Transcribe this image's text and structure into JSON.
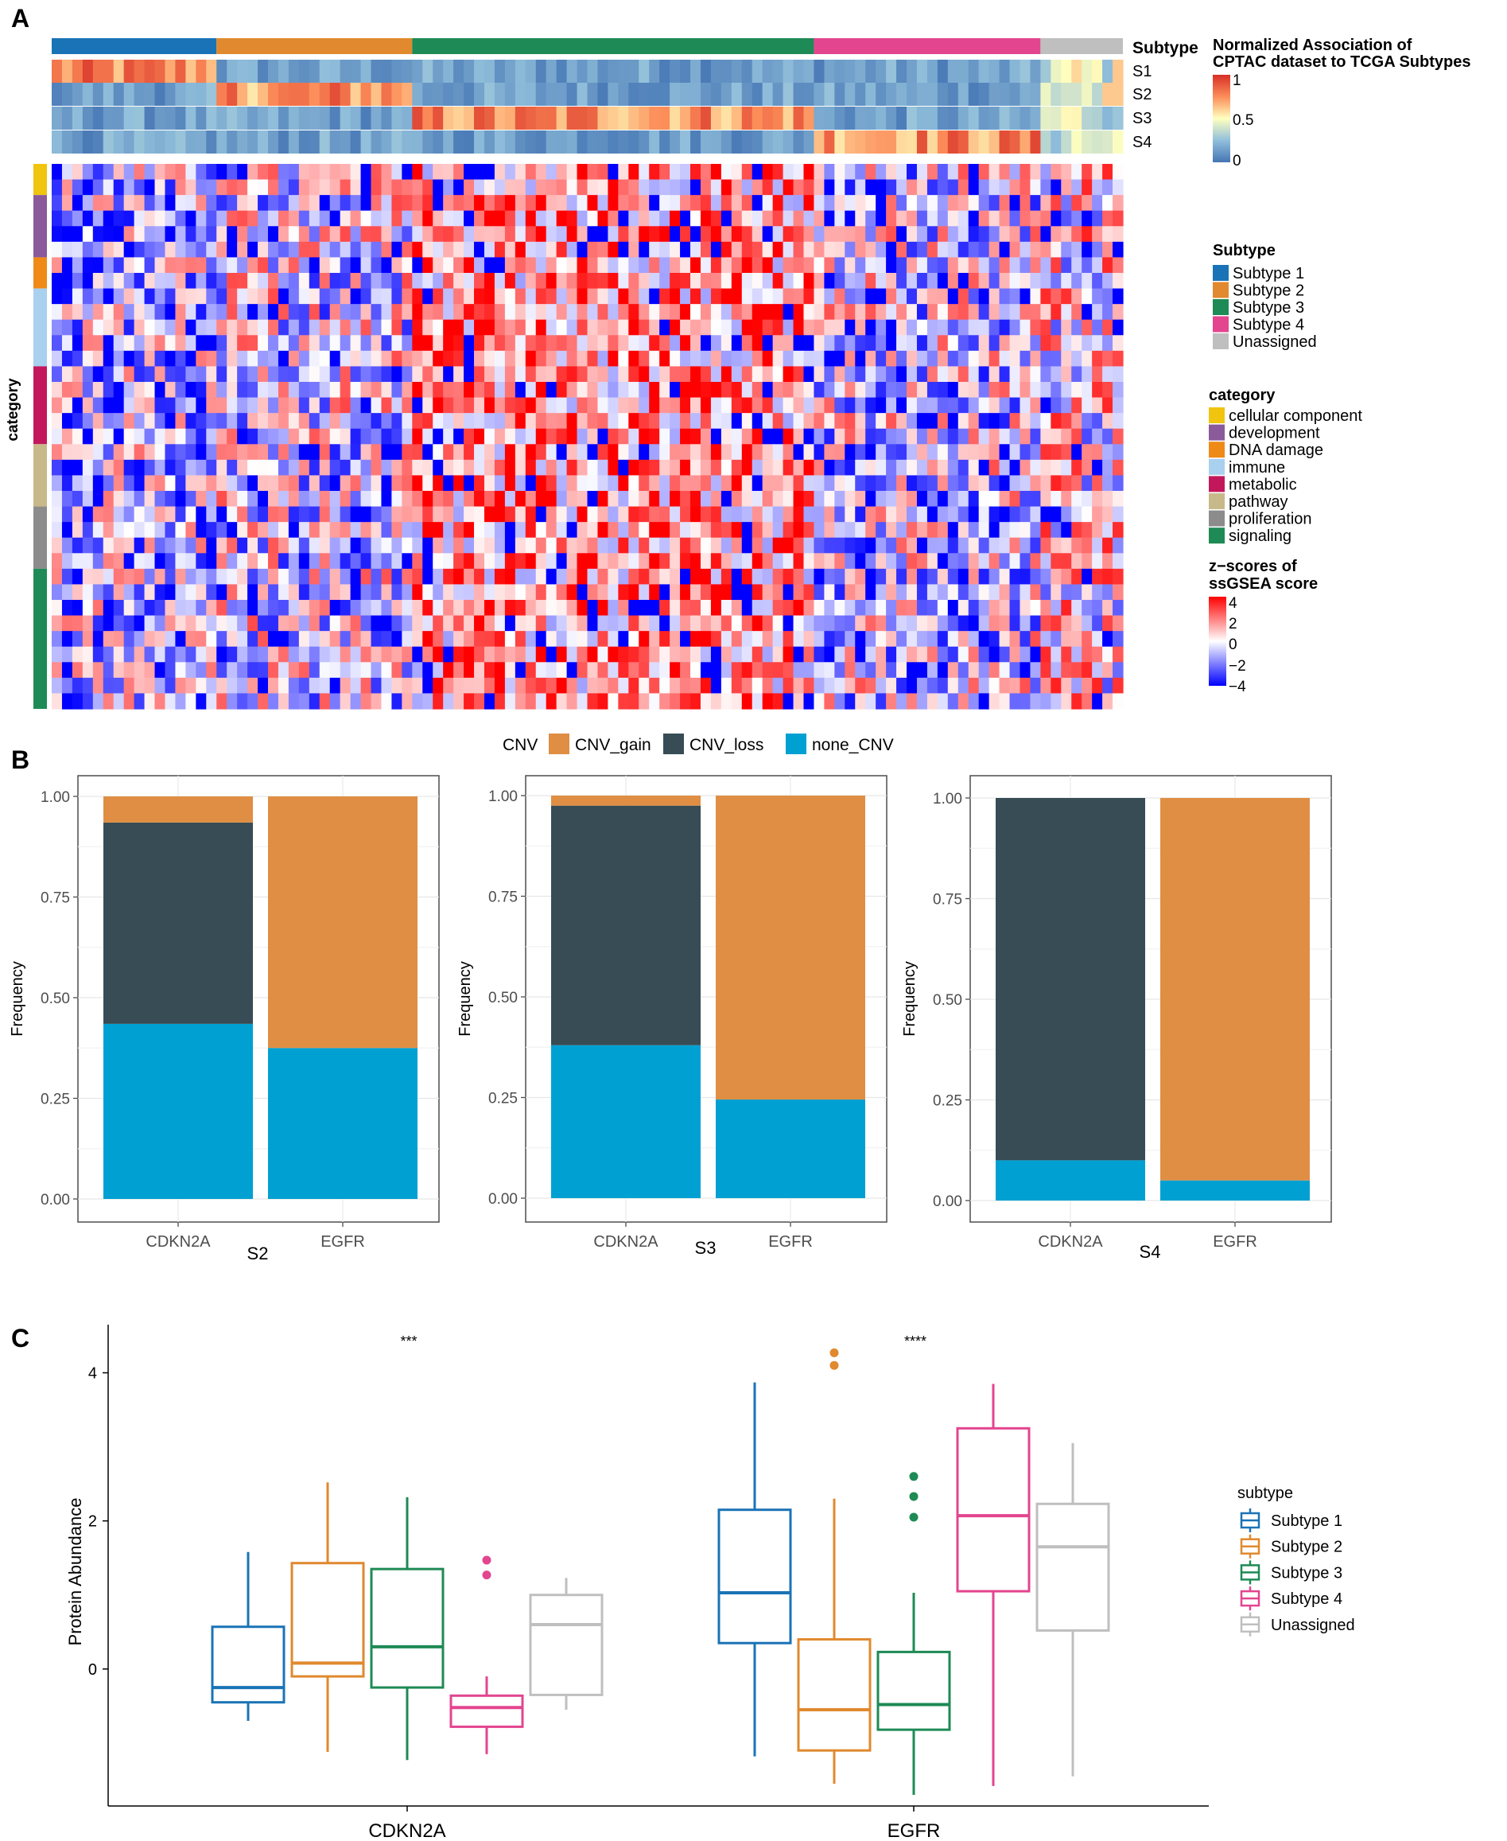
{
  "panels": {
    "a": "A",
    "b": "B",
    "c": "C"
  },
  "colors": {
    "subtype1": "#1a73b6",
    "subtype2": "#e0892e",
    "subtype3": "#1e8a55",
    "subtype4": "#e3458f",
    "unassigned": "#bfbfbf",
    "cnv_gain": "#df8e44",
    "cnv_loss": "#374c54",
    "none_cnv": "#00a0d2"
  },
  "heatmap": {
    "subtype_row_label": "Subtype",
    "assoc_rows": [
      "S1",
      "S2",
      "S3",
      "S4"
    ],
    "category_axis_label": "category",
    "assoc_legend_title": [
      "Normalized Association of",
      "CPTAC dataset to TCGA Subtypes"
    ],
    "assoc_legend_ticks": [
      "1",
      "0.5",
      "0"
    ],
    "subtype_legend_title": "Subtype",
    "subtype_legend_items": [
      "Subtype 1",
      "Subtype 2",
      "Subtype 3",
      "Subtype 4",
      "Unassigned"
    ],
    "category_legend_title": "category",
    "category_legend_items": [
      "cellular component",
      "development",
      "DNA damage",
      "immune",
      "metabolic",
      "pathway",
      "proliferation",
      "signaling"
    ],
    "category_colors": [
      "#f1c40f",
      "#8a5a9b",
      "#ef8a17",
      "#a9d0ef",
      "#c2185b",
      "#c8b98a",
      "#8c8c8c",
      "#1e8a55"
    ],
    "category_row_counts": [
      2,
      4,
      2,
      5,
      5,
      4,
      4,
      9
    ],
    "z_legend_title": [
      "z−scores of",
      "ssGSEA score"
    ],
    "z_legend_ticks": [
      "4",
      "2",
      "0",
      "−2",
      "−4"
    ],
    "sample_counts": [
      16,
      19,
      39,
      22,
      8
    ]
  },
  "chart_data": [
    {
      "type": "bar",
      "stacked": true,
      "panel": "B",
      "legend_title": "CNV",
      "legend_items": [
        "CNV_gain",
        "CNV_loss",
        "none_CNV"
      ],
      "ylabel": "Frequency",
      "yticks": [
        "0.00",
        "0.25",
        "0.50",
        "0.75",
        "1.00"
      ],
      "ylim": [
        0,
        1
      ],
      "facets": [
        {
          "label": "S2",
          "categories": [
            "CDKN2A",
            "EGFR"
          ],
          "series": [
            {
              "name": "none_CNV",
              "values": [
                0.435,
                0.375
              ]
            },
            {
              "name": "CNV_loss",
              "values": [
                0.5,
                0
              ]
            },
            {
              "name": "CNV_gain",
              "values": [
                0.065,
                0.625
              ]
            }
          ]
        },
        {
          "label": "S3",
          "categories": [
            "CDKN2A",
            "EGFR"
          ],
          "series": [
            {
              "name": "none_CNV",
              "values": [
                0.38,
                0.245
              ]
            },
            {
              "name": "CNV_loss",
              "values": [
                0.595,
                0
              ]
            },
            {
              "name": "CNV_gain",
              "values": [
                0.025,
                0.755
              ]
            }
          ]
        },
        {
          "label": "S4",
          "categories": [
            "CDKN2A",
            "EGFR"
          ],
          "series": [
            {
              "name": "none_CNV",
              "values": [
                0.1,
                0.05
              ]
            },
            {
              "name": "CNV_loss",
              "values": [
                0.9,
                0
              ]
            },
            {
              "name": "CNV_gain",
              "values": [
                0,
                0.95
              ]
            }
          ]
        }
      ]
    },
    {
      "type": "box",
      "panel": "C",
      "ylabel": "Protein Abundance",
      "yticks": [
        "0",
        "2",
        "4"
      ],
      "ylim": [
        -1.85,
        4.65
      ],
      "categories": [
        "CDKN2A",
        "EGFR"
      ],
      "significance": [
        "***",
        "****"
      ],
      "legend_title": "subtype",
      "legend_items": [
        "Subtype 1",
        "Subtype 2",
        "Subtype 3",
        "Subtype 4",
        "Unassigned"
      ],
      "groups": [
        {
          "gene": "CDKN2A",
          "boxes": [
            {
              "subtype": "Subtype 1",
              "min": -0.7,
              "q1": -0.45,
              "median": -0.25,
              "q3": 0.57,
              "max": 1.58,
              "outliers": []
            },
            {
              "subtype": "Subtype 2",
              "min": -1.12,
              "q1": -0.1,
              "median": 0.08,
              "q3": 1.43,
              "max": 2.52,
              "outliers": []
            },
            {
              "subtype": "Subtype 3",
              "min": -1.23,
              "q1": -0.25,
              "median": 0.3,
              "q3": 1.35,
              "max": 2.32,
              "outliers": []
            },
            {
              "subtype": "Subtype 4",
              "min": -1.15,
              "q1": -0.78,
              "median": -0.52,
              "q3": -0.36,
              "max": -0.1,
              "outliers": [
                1.27,
                1.47
              ]
            },
            {
              "subtype": "Unassigned",
              "min": -0.55,
              "q1": -0.35,
              "median": 0.6,
              "q3": 1.0,
              "max": 1.23,
              "outliers": []
            }
          ]
        },
        {
          "gene": "EGFR",
          "boxes": [
            {
              "subtype": "Subtype 1",
              "min": -1.18,
              "q1": 0.35,
              "median": 1.03,
              "q3": 2.15,
              "max": 3.87,
              "outliers": []
            },
            {
              "subtype": "Subtype 2",
              "min": -1.55,
              "q1": -1.1,
              "median": -0.55,
              "q3": 0.4,
              "max": 2.3,
              "outliers": [
                4.1,
                4.27
              ]
            },
            {
              "subtype": "Subtype 3",
              "min": -1.7,
              "q1": -0.82,
              "median": -0.48,
              "q3": 0.23,
              "max": 1.03,
              "outliers": [
                2.05,
                2.33,
                2.6
              ]
            },
            {
              "subtype": "Subtype 4",
              "min": -1.58,
              "q1": 1.05,
              "median": 2.07,
              "q3": 3.25,
              "max": 3.85,
              "outliers": []
            },
            {
              "subtype": "Unassigned",
              "min": -1.45,
              "q1": 0.52,
              "median": 1.65,
              "q3": 2.23,
              "max": 3.05,
              "outliers": []
            }
          ]
        }
      ]
    }
  ]
}
